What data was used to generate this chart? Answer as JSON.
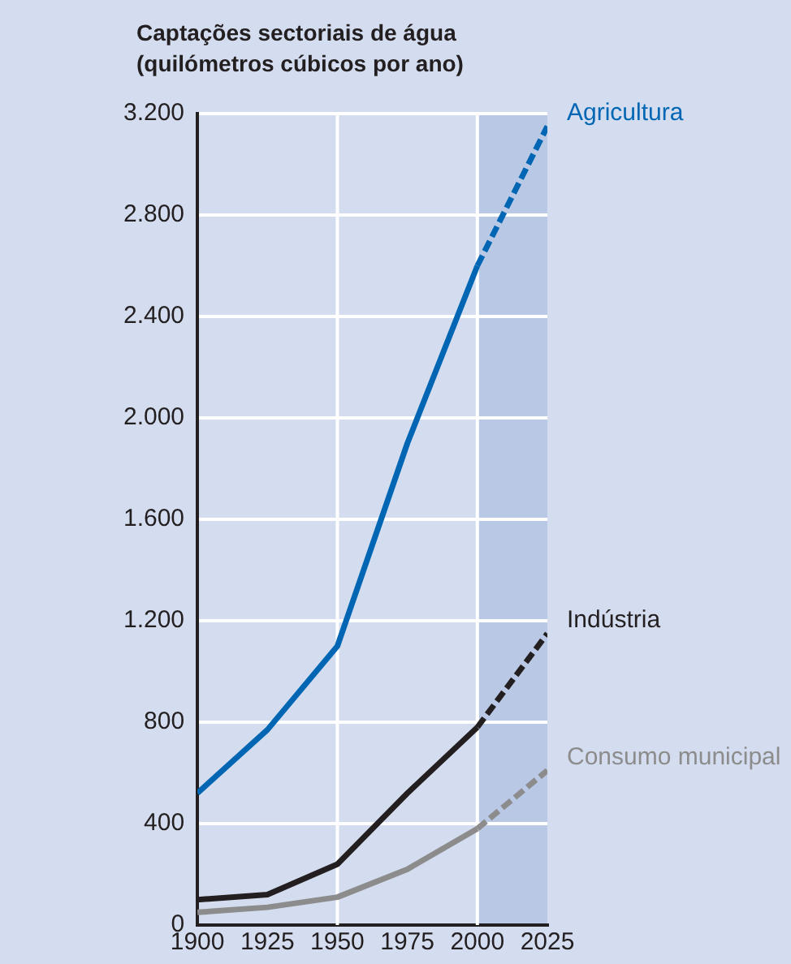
{
  "chart_data": {
    "type": "line",
    "title": "Captações sectoriais de água\n(quilómetros cúbicos por ano)",
    "xlim": [
      1900,
      2025
    ],
    "xticks": [
      1900,
      1925,
      1950,
      1975,
      2000,
      2025
    ],
    "ylim": [
      0,
      3200
    ],
    "yticks": [
      0,
      400,
      800,
      {
        "value": 1200,
        "label": "1.200"
      },
      {
        "value": 1600,
        "label": "1.600"
      },
      {
        "value": 2000,
        "label": "2.000"
      },
      {
        "value": 2400,
        "label": "2.400"
      },
      {
        "value": 2800,
        "label": "2.800"
      },
      {
        "value": 3200,
        "label": "3.200"
      }
    ],
    "grid": "y",
    "legend": false,
    "marker": "none",
    "series": [
      {
        "color": "#0066b3",
        "x": [
          1900,
          1925,
          1950,
          1975,
          2000
        ],
        "values": [
          520,
          770,
          1100,
          1900,
          2600
        ],
        "line_style": "solid"
      },
      {
        "name": "Agricultura",
        "color": "#0066b3",
        "x": [
          2000,
          2025
        ],
        "values": [
          2600,
          3150
        ],
        "line_style": "dashed"
      },
      {
        "color": "#231f20",
        "x": [
          1900,
          1925,
          1950,
          1975,
          2000
        ],
        "values": [
          100,
          120,
          240,
          520,
          780
        ],
        "line_style": "solid"
      },
      {
        "name": "Indústria",
        "color": "#231f20",
        "x": [
          2000,
          2025
        ],
        "values": [
          780,
          1150
        ],
        "line_style": "dashed"
      },
      {
        "color": "#8c8c8c",
        "x": [
          1900,
          1925,
          1950,
          1975,
          2000
        ],
        "values": [
          50,
          70,
          110,
          220,
          380
        ],
        "line_style": "solid"
      },
      {
        "name": "Consumo municipal",
        "color": "#8c8c8c",
        "x": [
          2000,
          2025
        ],
        "values": [
          380,
          610
        ],
        "line_style": "dashed"
      }
    ],
    "ref_lines": [
      {
        "axis": "x",
        "value": 1950,
        "color": "#ffffff"
      },
      {
        "axis": "x",
        "value": 2000,
        "color": "#ffffff"
      }
    ],
    "bands": [
      {
        "axis": "x",
        "from": 2000,
        "to": 2025,
        "color": "#b9c8e4"
      }
    ]
  }
}
